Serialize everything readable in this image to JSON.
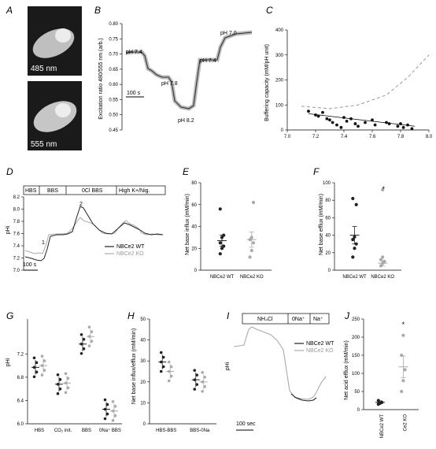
{
  "chart_data": [
    {
      "panel": "A",
      "type": "image",
      "labels": [
        "485 nm",
        "555 nm"
      ]
    },
    {
      "panel": "B",
      "type": "line",
      "ylabel": "Excitation ratio 480/555 nm (arb.)",
      "ylim": [
        0.45,
        0.8
      ],
      "yticks": [
        "0.80",
        "0.75",
        "0.70",
        "0.65",
        "0.60",
        "0.55",
        "0.50",
        "0.45"
      ],
      "annotations": [
        "pH 7.4",
        "pH 7.8",
        "pH 8.2",
        "pH 7.4",
        "pH 7.0"
      ],
      "scalebar": "100 s"
    },
    {
      "panel": "C",
      "type": "scatter",
      "ylabel": "Buffering capacity (mM/pH unit)",
      "ylim": [
        0,
        400
      ],
      "xlim": [
        7.0,
        8.0
      ],
      "xticks": [
        "7.0",
        "7.2",
        "7.4",
        "7.6",
        "7.8",
        "8.0"
      ],
      "yticks": [
        "0",
        "100",
        "200",
        "300",
        "400"
      ],
      "points": [
        [
          7.15,
          75
        ],
        [
          7.2,
          60
        ],
        [
          7.22,
          55
        ],
        [
          7.25,
          70
        ],
        [
          7.28,
          45
        ],
        [
          7.3,
          40
        ],
        [
          7.32,
          30
        ],
        [
          7.35,
          20
        ],
        [
          7.38,
          10
        ],
        [
          7.4,
          50
        ],
        [
          7.42,
          35
        ],
        [
          7.45,
          45
        ],
        [
          7.48,
          25
        ],
        [
          7.5,
          15
        ],
        [
          7.55,
          30
        ],
        [
          7.6,
          40
        ],
        [
          7.62,
          20
        ],
        [
          7.7,
          30
        ],
        [
          7.72,
          25
        ],
        [
          7.78,
          15
        ],
        [
          7.8,
          25
        ],
        [
          7.82,
          10
        ],
        [
          7.85,
          20
        ],
        [
          7.88,
          5
        ]
      ],
      "fit_line": [
        [
          7.15,
          65
        ],
        [
          7.9,
          15
        ]
      ],
      "curve": [
        [
          7.1,
          95
        ],
        [
          7.3,
          85
        ],
        [
          7.5,
          100
        ],
        [
          7.7,
          140
        ],
        [
          7.85,
          210
        ],
        [
          8.0,
          300
        ]
      ]
    },
    {
      "panel": "D",
      "type": "line",
      "ylabel": "pHi",
      "ylim": [
        7.0,
        8.2
      ],
      "yticks": [
        "7.0",
        "7.2",
        "7.4",
        "7.6",
        "7.8",
        "8.0",
        "8.2"
      ],
      "bar_labels": [
        "HBS",
        "BBS",
        "0Cl BBS",
        "High K+/Nig."
      ],
      "markers": [
        "1",
        "2"
      ],
      "legend": [
        "NBCe2 WT",
        "NBCe2 KO"
      ],
      "scalebar": "100 s"
    },
    {
      "panel": "E",
      "type": "scatter",
      "ylabel": "Net base influx (mM/min)",
      "ylim": [
        0,
        80
      ],
      "yticks": [
        "0",
        "20",
        "40",
        "60",
        "80"
      ],
      "categories": [
        "NBCe2 WT",
        "NBCe2 KO"
      ],
      "points": {
        "NBCe2 WT": [
          15,
          20,
          22,
          25,
          30,
          32,
          56
        ],
        "NBCe2 KO": [
          12,
          18,
          25,
          28,
          30,
          62
        ]
      },
      "means": [
        27,
        28
      ],
      "sems": [
        5,
        7
      ]
    },
    {
      "panel": "F",
      "type": "scatter",
      "ylabel": "Net base efflux (mM/min)",
      "ylim": [
        0,
        100
      ],
      "yticks": [
        "0",
        "20",
        "40",
        "60",
        "80",
        "100"
      ],
      "categories": [
        "NBCe2 WT",
        "NBCe2 KO"
      ],
      "points": {
        "NBCe2 WT": [
          15,
          25,
          30,
          35,
          38,
          75,
          82
        ],
        "NBCe2 KO": [
          5,
          8,
          10,
          12,
          15
        ],
        "outlier": [
          92
        ]
      },
      "means": [
        40,
        8
      ],
      "sems": [
        10,
        3
      ],
      "significance": "*"
    },
    {
      "panel": "G",
      "type": "scatter",
      "ylabel": "pHi",
      "ylim": [
        6.0,
        7.8
      ],
      "yticks": [
        "6.0",
        "6.4",
        "6.8",
        "7.2"
      ],
      "categories": [
        "HBS",
        "CO₂ init.",
        "BBS",
        "0Na⁺ BBS"
      ],
      "means": {
        "WT": [
          6.97,
          6.68,
          7.37,
          6.25
        ],
        "KO": [
          7.0,
          6.7,
          7.5,
          6.22
        ]
      }
    },
    {
      "panel": "H",
      "type": "scatter",
      "ylabel": "Net base influx/efflux (mM/min)",
      "ylim": [
        0,
        50
      ],
      "yticks": [
        "0",
        "10",
        "20",
        "30",
        "40",
        "50"
      ],
      "categories": [
        "HBS-BBS",
        "BBS-0Na"
      ],
      "means": {
        "WT": [
          29.5,
          21
        ],
        "KO": [
          25,
          20
        ]
      }
    },
    {
      "panel": "I",
      "type": "line",
      "ylabel": "pHi",
      "bar_labels": [
        "NH₄Cl",
        "0Na⁺",
        "Na⁺"
      ],
      "legend": [
        "NBCe2 WT",
        "NBCe2 KO"
      ],
      "scalebar": "100 sec"
    },
    {
      "panel": "J",
      "type": "scatter",
      "ylabel": "Net acid efflux (mM/min)",
      "ylim": [
        0,
        250
      ],
      "yticks": [
        "0",
        "50",
        "100",
        "150",
        "200",
        "250"
      ],
      "categories": [
        "NBCe2 WT",
        "Ce2 KO"
      ],
      "points": {
        "NBCe2 WT": [
          15,
          18,
          20,
          25
        ],
        "Ce2 KO": [
          50,
          80,
          110,
          150,
          205
        ]
      },
      "means": [
        20,
        118
      ],
      "sems": [
        4,
        30
      ],
      "significance": "*"
    }
  ],
  "colors": {
    "wt": "#222222",
    "ko": "#aaaaaa"
  }
}
